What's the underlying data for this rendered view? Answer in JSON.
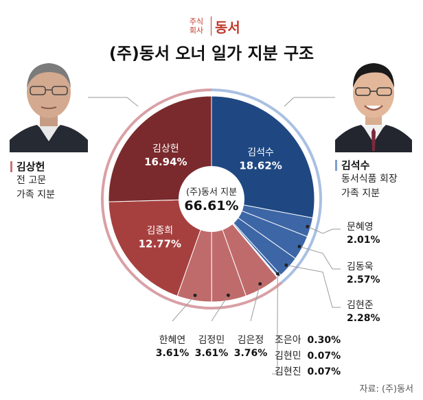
{
  "logo": {
    "small_text": "주식\n회사",
    "name": "동서"
  },
  "title": "(주)동서 오너 일가 지분 구조",
  "people": {
    "left": {
      "name": "김상헌",
      "desc1": "전 고문",
      "desc2": "가족 지분",
      "color": "#c8727a"
    },
    "right": {
      "name": "김석수",
      "desc1": "동서식품 회장",
      "desc2": "가족 지분",
      "color": "#7d9fcf"
    }
  },
  "source": "자료: (주)동서",
  "colors": {
    "dark_red": "#7a2a2c",
    "mid_red": "#a6403f",
    "light_red": "#c06b6b",
    "dark_blue": "#1f4883",
    "mid_blue": "#3d66a6",
    "ring_red": "#d9a0a6",
    "ring_blue": "#a9c0e2"
  },
  "chart_data": {
    "type": "pie",
    "center_label": "(주)동서 지분",
    "center_value": "66.61%",
    "slices": [
      {
        "name": "김석수",
        "value": 18.62,
        "label": "18.62%",
        "group": "blue"
      },
      {
        "name": "문혜영",
        "value": 2.01,
        "label": "2.01%",
        "group": "blue"
      },
      {
        "name": "김동욱",
        "value": 2.57,
        "label": "2.57%",
        "group": "blue"
      },
      {
        "name": "김현준",
        "value": 2.28,
        "label": "2.28%",
        "group": "blue"
      },
      {
        "name": "조은아",
        "value": 0.3,
        "label": "0.30%",
        "group": "blue"
      },
      {
        "name": "김현민",
        "value": 0.07,
        "label": "0.07%",
        "group": "blue"
      },
      {
        "name": "김현진",
        "value": 0.07,
        "label": "0.07%",
        "group": "blue"
      },
      {
        "name": "김은정",
        "value": 3.76,
        "label": "3.76%",
        "group": "red"
      },
      {
        "name": "김정민",
        "value": 3.61,
        "label": "3.61%",
        "group": "red"
      },
      {
        "name": "한혜연",
        "value": 3.61,
        "label": "3.61%",
        "group": "red"
      },
      {
        "name": "김종희",
        "value": 12.77,
        "label": "12.77%",
        "group": "red"
      },
      {
        "name": "김상헌",
        "value": 16.94,
        "label": "16.94%",
        "group": "red"
      }
    ]
  }
}
